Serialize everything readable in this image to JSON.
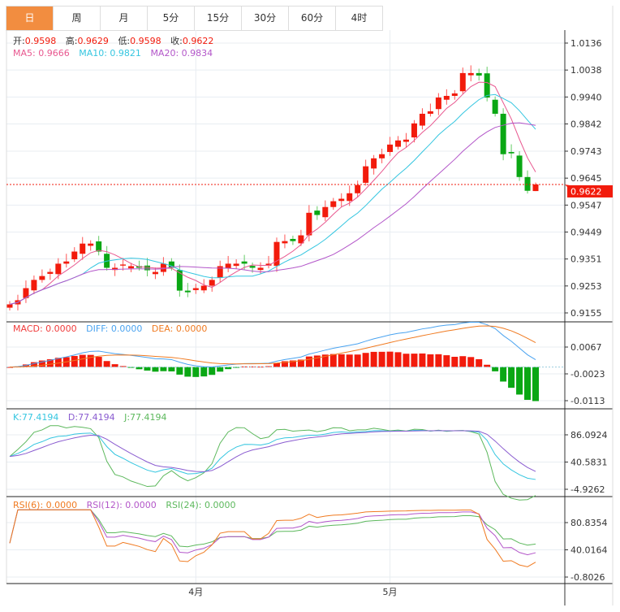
{
  "tabs": [
    "日",
    "周",
    "月",
    "5分",
    "15分",
    "30分",
    "60分",
    "4时"
  ],
  "active_tab": 0,
  "ohlc": {
    "open_label": "开:",
    "open": "0.9598",
    "high_label": "高:",
    "high": "0.9629",
    "low_label": "低:",
    "low": "0.9598",
    "close_label": "收:",
    "close": "0.9622"
  },
  "ma": {
    "ma5": "MA5: 0.9666",
    "ma10": "MA10: 0.9821",
    "ma20": "MA20: 0.9834"
  },
  "macd_legend": {
    "macd": "MACD: 0.0000",
    "diff": "DIFF: 0.0000",
    "dea": "DEA: 0.0000"
  },
  "kdj_legend": {
    "k": "K:77.4194",
    "d": "D:77.4194",
    "j": "J:77.4194"
  },
  "rsi_legend": {
    "rsi6": "RSI(6): 0.0000",
    "rsi12": "RSI(12): 0.0000",
    "rsi24": "RSI(24): 0.0000"
  },
  "current_price": "0.9622",
  "colors": {
    "up": "#f21b0c",
    "down": "#0aa714",
    "ma5": "#e8578f",
    "ma10": "#35c6e0",
    "ma20": "#b356c9",
    "accent": "#f28d40"
  },
  "chart_data": {
    "type": "candlestick",
    "price_axis": [
      1.0136,
      1.0038,
      0.994,
      0.9842,
      0.9743,
      0.9645,
      0.9547,
      0.9449,
      0.9351,
      0.9253,
      0.9155
    ],
    "price_axis_labels": [
      "1.0136",
      "1.0038",
      "0.9940",
      "0.9842",
      "0.9743",
      "0.9645",
      "0.9547",
      "0.9449",
      "0.9351",
      "0.9253",
      "0.9155"
    ],
    "macd_axis": [
      0.0067,
      -0.0023,
      -0.0113
    ],
    "macd_axis_labels": [
      "0.0067",
      "-0.0023",
      "-0.0113"
    ],
    "kdj_axis": [
      86.0924,
      40.5831,
      -4.9262
    ],
    "kdj_axis_labels": [
      "86.0924",
      "40.5831",
      "-4.9262"
    ],
    "rsi_axis": [
      80.8354,
      40.0164,
      -0.8026
    ],
    "rsi_axis_labels": [
      "80.8354",
      "40.0164",
      "-0.8026"
    ],
    "x_labels": [
      {
        "index": 23,
        "label": "4月"
      },
      {
        "index": 47,
        "label": "5月"
      }
    ],
    "closes": [
      0.9186,
      0.9201,
      0.9245,
      0.9275,
      0.9289,
      0.9304,
      0.9334,
      0.9342,
      0.9378,
      0.9407,
      0.9407,
      0.9378,
      0.9319,
      0.9319,
      0.9331,
      0.9325,
      0.9319,
      0.931,
      0.9304,
      0.9334,
      0.9319,
      0.9236,
      0.923,
      0.9245,
      0.9254,
      0.9275,
      0.9325,
      0.9334,
      0.9334,
      0.9334,
      0.9319,
      0.9319,
      0.9334,
      0.9413,
      0.9416,
      0.9416,
      0.9437,
      0.9519,
      0.9511,
      0.954,
      0.9561,
      0.957,
      0.959,
      0.962,
      0.9688,
      0.9717,
      0.9732,
      0.9767,
      0.9782,
      0.9785,
      0.9844,
      0.9879,
      0.9888,
      0.9938,
      0.9944,
      0.9953,
      1.0027,
      1.0027,
      1.0018,
      0.9938,
      0.9879,
      0.9732,
      0.9735,
      0.9649,
      0.9599,
      0.9622
    ],
    "last_candle": {
      "open": 0.9598,
      "high": 0.9629,
      "low": 0.9598,
      "close": 0.9622
    }
  }
}
